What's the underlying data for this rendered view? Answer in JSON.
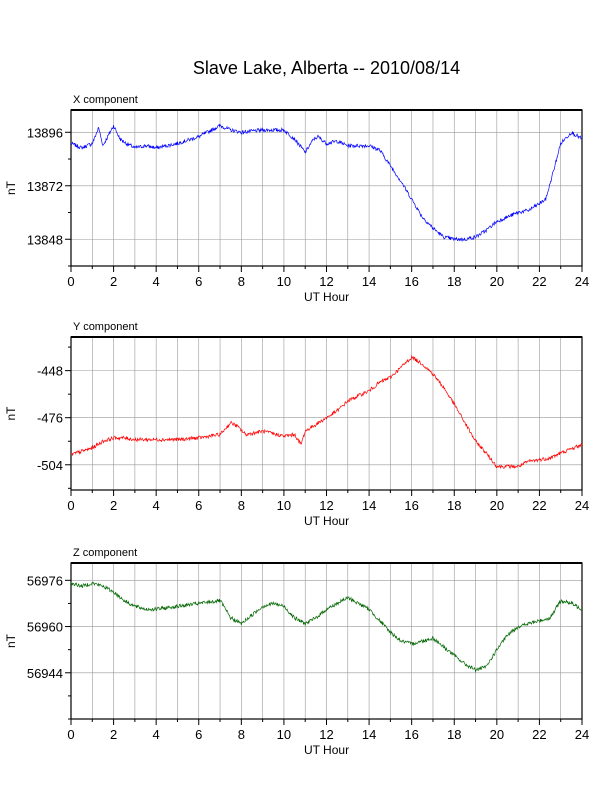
{
  "title": "Slave Lake, Alberta -- 2010/08/14",
  "colors": {
    "X": "#0000ff",
    "Y": "#ff0000",
    "Z": "#006600",
    "grid": "#999999"
  },
  "chart_data": [
    {
      "type": "line",
      "panel_label": "X component",
      "xlabel": "UT Hour",
      "ylabel": "nT",
      "xlim": [
        0,
        24
      ],
      "ylim": [
        13836,
        13906
      ],
      "xticks": [
        0,
        2,
        4,
        6,
        8,
        10,
        12,
        14,
        16,
        18,
        20,
        22,
        24
      ],
      "yticks": [
        13848,
        13872,
        13896
      ],
      "grid": true,
      "color": "#0000ff",
      "x": [
        0,
        0.5,
        1,
        1.3,
        1.5,
        2,
        2.3,
        2.6,
        3,
        3.5,
        4,
        5,
        6,
        7,
        7.5,
        8,
        9,
        10,
        10.5,
        11,
        11.4,
        11.6,
        12,
        12.5,
        13,
        14,
        14.5,
        15,
        15.5,
        16,
        16.5,
        17,
        17.5,
        18,
        18.5,
        19,
        19.5,
        20,
        20.5,
        21,
        21.5,
        22,
        22.3,
        22.7,
        23,
        23.5,
        24
      ],
      "y": [
        13891,
        13889,
        13891,
        13898,
        13890,
        13899,
        13893,
        13891,
        13889,
        13890,
        13889,
        13891,
        13894,
        13899,
        13897,
        13896,
        13897,
        13897,
        13893,
        13887,
        13893,
        13894,
        13891,
        13892,
        13890,
        13890,
        13888,
        13881,
        13874,
        13866,
        13858,
        13853,
        13849,
        13848,
        13848,
        13849,
        13852,
        13856,
        13858,
        13860,
        13861,
        13864,
        13866,
        13880,
        13891,
        13896,
        13893
      ]
    },
    {
      "type": "line",
      "panel_label": "Y component",
      "xlabel": "UT Hour",
      "ylabel": "nT",
      "xlim": [
        0,
        24
      ],
      "ylim": [
        -519,
        -428
      ],
      "xticks": [
        0,
        2,
        4,
        6,
        8,
        10,
        12,
        14,
        16,
        18,
        20,
        22,
        24
      ],
      "yticks": [
        -448,
        -476,
        -504
      ],
      "grid": true,
      "color": "#ff0000",
      "x": [
        0,
        0.5,
        1,
        1.5,
        2,
        2.5,
        3,
        4,
        5,
        6,
        7,
        7.5,
        7.8,
        8.2,
        9,
        10,
        10.5,
        10.8,
        11,
        11.5,
        12,
        12.5,
        13,
        14,
        14.5,
        15,
        15.5,
        16,
        16.5,
        17,
        17.5,
        18,
        18.5,
        19,
        19.5,
        20,
        21,
        21.5,
        22,
        22.5,
        23,
        24
      ],
      "y": [
        -498,
        -496,
        -494,
        -490,
        -488,
        -488,
        -489,
        -489,
        -489,
        -488,
        -486,
        -479,
        -481,
        -486,
        -484,
        -487,
        -486,
        -492,
        -484,
        -480,
        -476,
        -472,
        -466,
        -460,
        -455,
        -452,
        -446,
        -440,
        -444,
        -450,
        -458,
        -468,
        -479,
        -490,
        -497,
        -505,
        -505,
        -502,
        -501,
        -500,
        -497,
        -492
      ]
    },
    {
      "type": "line",
      "panel_label": "Z component",
      "xlabel": "UT Hour",
      "ylabel": "nT",
      "xlim": [
        0,
        24
      ],
      "ylim": [
        56928,
        56982
      ],
      "xticks": [
        0,
        2,
        4,
        6,
        8,
        10,
        12,
        14,
        16,
        18,
        20,
        22,
        24
      ],
      "yticks": [
        56944,
        56960,
        56976
      ],
      "grid": true,
      "color": "#006600",
      "x": [
        0,
        0.5,
        1,
        1.5,
        2,
        2.5,
        3,
        3.5,
        4,
        5,
        6,
        7,
        7.5,
        8,
        8.5,
        9,
        9.5,
        10,
        10.5,
        11,
        11.5,
        12,
        12.5,
        13,
        13.5,
        14,
        14.5,
        15,
        15.5,
        16,
        16.5,
        17,
        17.5,
        18,
        18.5,
        19,
        19.5,
        20,
        20.5,
        21,
        21.5,
        22,
        22.5,
        23,
        23.5,
        24
      ],
      "y": [
        56975,
        56974,
        56975,
        56974,
        56972,
        56969,
        56967,
        56966,
        56966,
        56967,
        56968,
        56969,
        56963,
        56961,
        56964,
        56967,
        56968,
        56967,
        56963,
        56961,
        56963,
        56966,
        56968,
        56970,
        56968,
        56966,
        56962,
        56958,
        56955,
        56954,
        56955,
        56956,
        56953,
        56950,
        56947,
        56945,
        56946,
        56952,
        56957,
        56960,
        56961,
        56962,
        56963,
        56969,
        56968,
        56966
      ]
    }
  ]
}
